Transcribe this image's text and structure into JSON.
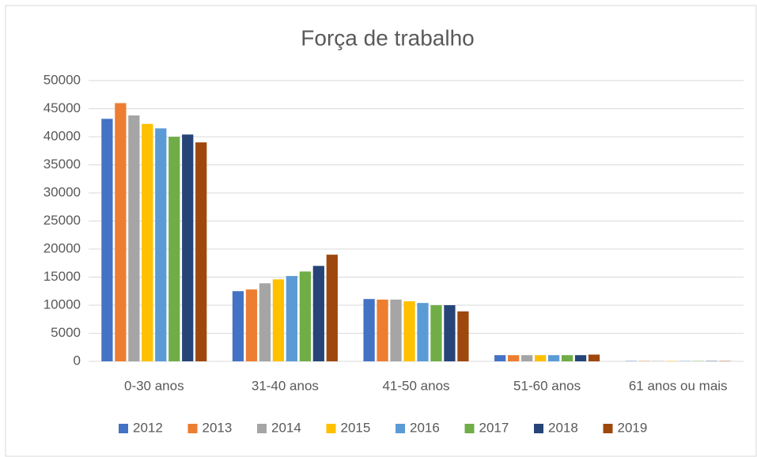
{
  "chart_data": {
    "type": "bar",
    "title": "Força de trabalho",
    "categories": [
      "0-30 anos",
      "31-40 anos",
      "41-50 anos",
      "51-60 anos",
      "61 anos ou mais"
    ],
    "series": [
      {
        "name": "2012",
        "color": "#4472c4",
        "values": [
          43200,
          12500,
          11100,
          1100,
          50
        ]
      },
      {
        "name": "2013",
        "color": "#ed7d31",
        "values": [
          46000,
          12800,
          11000,
          1100,
          50
        ]
      },
      {
        "name": "2014",
        "color": "#a5a5a5",
        "values": [
          43800,
          13900,
          11000,
          1100,
          50
        ]
      },
      {
        "name": "2015",
        "color": "#ffc000",
        "values": [
          42300,
          14600,
          10700,
          1100,
          50
        ]
      },
      {
        "name": "2016",
        "color": "#5b9bd5",
        "values": [
          41500,
          15200,
          10400,
          1100,
          50
        ]
      },
      {
        "name": "2017",
        "color": "#70ad47",
        "values": [
          40000,
          16000,
          10000,
          1100,
          50
        ]
      },
      {
        "name": "2018",
        "color": "#264478",
        "values": [
          40400,
          17000,
          10000,
          1100,
          50
        ]
      },
      {
        "name": "2019",
        "color": "#9e480e",
        "values": [
          39000,
          19000,
          8900,
          1200,
          50
        ]
      }
    ],
    "ylim": [
      0,
      50000
    ],
    "yticks": [
      0,
      5000,
      10000,
      15000,
      20000,
      25000,
      30000,
      35000,
      40000,
      45000,
      50000
    ],
    "grid": true,
    "legend": "bottom"
  }
}
